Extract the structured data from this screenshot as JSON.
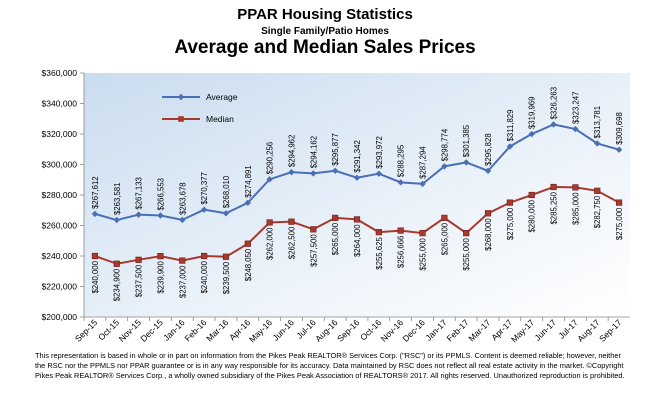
{
  "header": {
    "title": "PPAR Housing Statistics",
    "subtitle": "Single Family/Patio Homes",
    "chart_title": "Average and Median Sales Prices"
  },
  "chart_data": {
    "type": "line",
    "title": "Average and Median Sales Prices",
    "categories": [
      "Sep-15",
      "Oct-15",
      "Nov-15",
      "Dec-15",
      "Jan-16",
      "Feb-16",
      "Mar-16",
      "Apr-16",
      "May-16",
      "Jun-16",
      "Jul-16",
      "Aug-16",
      "Sep-16",
      "Oct-16",
      "Nov-16",
      "Dec-16",
      "Jan-17",
      "Feb-17",
      "Mar-17",
      "Apr-17",
      "May-17",
      "Jun-17",
      "Jul-17",
      "Aug-17",
      "Sep-17"
    ],
    "ylim": [
      200000,
      360000
    ],
    "y_ticks": [
      "$200,000",
      "$220,000",
      "$240,000",
      "$260,000",
      "$280,000",
      "$300,000",
      "$320,000",
      "$340,000",
      "$360,000"
    ],
    "series": [
      {
        "name": "Average",
        "color": "#4a6fb5",
        "values": [
          267612,
          263581,
          267133,
          266553,
          263678,
          270377,
          268010,
          274891,
          290256,
          294962,
          294162,
          295877,
          291342,
          293972,
          288295,
          287294,
          298774,
          301385,
          295828,
          311829,
          319969,
          326263,
          323247,
          313781,
          309698
        ],
        "labels": [
          "$267,612",
          "$263,581",
          "$267,133",
          "$266,553",
          "$263,678",
          "$270,377",
          "$268,010",
          "$274,891",
          "$290,256",
          "$294,962",
          "$294,162",
          "$295,877",
          "$291,342",
          "$293,972",
          "$288,295",
          "$287,294",
          "$298,774",
          "$301,385",
          "$295,828",
          "$311,829",
          "$319,969",
          "$326,263",
          "$323,247",
          "$313,781",
          "$309,698"
        ]
      },
      {
        "name": "Median",
        "color": "#a8392e",
        "values": [
          240000,
          234900,
          237500,
          239900,
          237000,
          240000,
          239500,
          248050,
          262000,
          262500,
          257500,
          265000,
          264000,
          255625,
          256666,
          255000,
          265000,
          255000,
          268000,
          275000,
          280000,
          285250,
          285000,
          282750,
          275000
        ],
        "labels": [
          "$240,000",
          "$234,900",
          "$237,500",
          "$239,900",
          "$237,000",
          "$240,000",
          "$239,500",
          "$248,050",
          "$262,000",
          "$262,500",
          "$257,500",
          "$265,000",
          "$264,000",
          "$255,625",
          "$256,666",
          "$255,000",
          "$265,000",
          "$255,000",
          "$268,000",
          "$275,000",
          "$280,000",
          "$285,250",
          "$285,000",
          "$282,750",
          "$275,000"
        ]
      }
    ],
    "legend_position": "top-left inside plot",
    "grid": false,
    "background": "gradient light blue"
  },
  "footer": {
    "disclaimer": "This representation is based in whole or in part on information from the Pikes Peak REALTOR® Services Corp. (\"RSC\") or its PPMLS. Content is deemed reliable; however, neither the RSC nor the PPMLS nor PPAR guarantee or is in any way responsible for its accuracy. Data maintained by RSC does not reflect all real estate activity in the market. ©Copyright Pikes Peak REALTOR® Services Corp., a wholly owned subsidiary of the Pikes Peak Association of REALTORS® 2017. All rights reserved. Unauthorized reproduction is prohibited."
  }
}
